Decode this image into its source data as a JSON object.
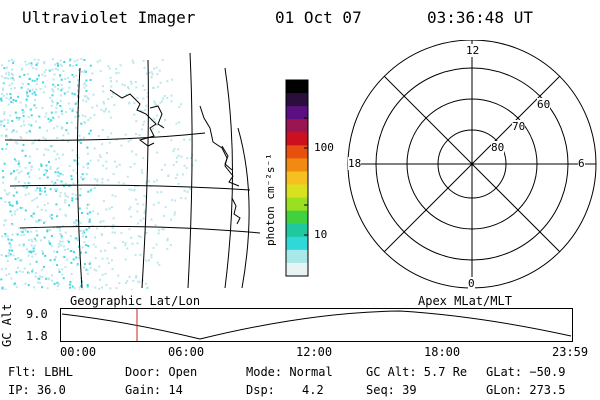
{
  "header": {
    "instrument": "Ultraviolet Imager",
    "date": "01 Oct 07",
    "time": "03:36:48 UT"
  },
  "colorbar": {
    "unit_label": "photon cm⁻²s⁻¹",
    "ticks": [
      "100",
      "10"
    ],
    "colors": [
      "#000000",
      "#2a0f3c",
      "#5a1080",
      "#9b1550",
      "#cc1020",
      "#e85010",
      "#f08a10",
      "#f5c020",
      "#d8e020",
      "#98e020",
      "#40d040",
      "#20c8a0",
      "#30d8d8",
      "#a8e8e8",
      "#e8f4f4"
    ]
  },
  "geo_map": {
    "colors": {
      "aurora": "#40d8e0",
      "aurora_light": "#b8e8ec",
      "coast": "#000000",
      "grid": "#000000"
    }
  },
  "polar_plot": {
    "labels": {
      "top": "12",
      "bottom": "0",
      "left": "18",
      "right": "6",
      "r60": "60",
      "r70": "70",
      "r80": "80"
    }
  },
  "timeline": {
    "left_title": "Geographic Lat/Lon",
    "right_title": "Apex MLat/MLT",
    "axis_label": "GC Alt",
    "y_ticks": [
      "9.0",
      "1.8"
    ],
    "x_ticks": [
      "00:00",
      "06:00",
      "12:00",
      "18:00",
      "23:59"
    ],
    "marker_color": "#cc2020"
  },
  "status": {
    "flt": "Flt: LBHL",
    "door": "Door: Open",
    "mode": "Mode: Normal",
    "gc_alt": "GC Alt: 5.7 Re",
    "glat": "GLat: −50.9",
    "ip": "IP: 36.0",
    "gain": "Gain: 14",
    "dsp_label": "Dsp:",
    "dsp_value": "4.2",
    "seq": "Seq: 39",
    "glon": "GLon: 273.5"
  }
}
